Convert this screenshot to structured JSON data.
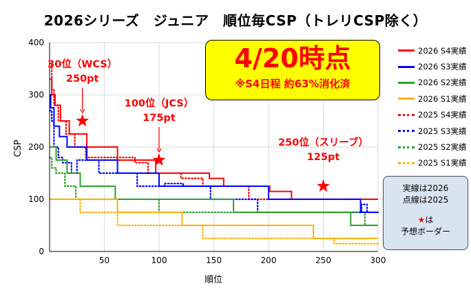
{
  "title": "2026シリーズ　ジュニア　順位毎CSP（トレリCSP除く）",
  "headline": {
    "main": "4/20時点",
    "sub": "※S4日程 約63%消化済"
  },
  "note": {
    "line1": "実線は2026",
    "line2": "点線は2025",
    "star_symbol": "★",
    "line3": "は",
    "line4": "予想ボーダー"
  },
  "colors": {
    "S4": "#ff0000",
    "S3": "#0000ff",
    "S2": "#2ca02c",
    "S1": "#ffb000",
    "axis": "#000000",
    "grid": "#d9d9d9"
  },
  "chart_data": {
    "type": "line",
    "title": "2026シリーズ　ジュニア　順位毎CSP（トレリCSP除く）",
    "xlabel": "順位",
    "ylabel": "CSP",
    "xlim": [
      0,
      300
    ],
    "ylim": [
      0,
      400
    ],
    "xticks": [
      50,
      100,
      150,
      200,
      250,
      300
    ],
    "yticks": [
      0,
      100,
      200,
      300,
      400
    ],
    "grid": true,
    "legend_position": "right",
    "series": [
      {
        "name": "2026 S4実績",
        "year": 2026,
        "key": "S4",
        "style": "solid",
        "points": [
          [
            0,
            330
          ],
          [
            2,
            330
          ],
          [
            2,
            300
          ],
          [
            5,
            300
          ],
          [
            5,
            280
          ],
          [
            10,
            280
          ],
          [
            10,
            250
          ],
          [
            18,
            250
          ],
          [
            18,
            225
          ],
          [
            34,
            225
          ],
          [
            34,
            200
          ],
          [
            62,
            200
          ],
          [
            62,
            175
          ],
          [
            97,
            175
          ],
          [
            97,
            150
          ],
          [
            146,
            150
          ],
          [
            146,
            140
          ],
          [
            159,
            140
          ],
          [
            159,
            125
          ],
          [
            201,
            125
          ],
          [
            201,
            115
          ],
          [
            221,
            115
          ],
          [
            221,
            100
          ],
          [
            300,
            100
          ]
        ]
      },
      {
        "name": "2026 S3実績",
        "year": 2026,
        "key": "S3",
        "style": "solid",
        "points": [
          [
            0,
            300
          ],
          [
            1,
            300
          ],
          [
            1,
            275
          ],
          [
            4,
            275
          ],
          [
            4,
            240
          ],
          [
            9,
            240
          ],
          [
            9,
            220
          ],
          [
            16,
            220
          ],
          [
            16,
            200
          ],
          [
            34,
            200
          ],
          [
            34,
            175
          ],
          [
            62,
            175
          ],
          [
            62,
            150
          ],
          [
            100,
            150
          ],
          [
            100,
            125
          ],
          [
            200,
            125
          ],
          [
            200,
            100
          ],
          [
            284,
            100
          ],
          [
            284,
            75
          ],
          [
            300,
            75
          ]
        ]
      },
      {
        "name": "2026 S2実績",
        "year": 2026,
        "key": "S2",
        "style": "solid",
        "points": [
          [
            0,
            200
          ],
          [
            6,
            200
          ],
          [
            6,
            175
          ],
          [
            16,
            175
          ],
          [
            16,
            150
          ],
          [
            28,
            150
          ],
          [
            28,
            125
          ],
          [
            60,
            125
          ],
          [
            60,
            100
          ],
          [
            168,
            100
          ],
          [
            168,
            75
          ],
          [
            275,
            75
          ],
          [
            275,
            50
          ],
          [
            300,
            50
          ]
        ]
      },
      {
        "name": "2026 S1実績",
        "year": 2026,
        "key": "S1",
        "style": "solid",
        "points": [
          [
            0,
            100
          ],
          [
            62,
            100
          ],
          [
            62,
            75
          ],
          [
            121,
            75
          ],
          [
            121,
            50
          ],
          [
            241,
            50
          ],
          [
            241,
            25
          ],
          [
            300,
            25
          ]
        ]
      },
      {
        "name": "2025 S4実績",
        "year": 2025,
        "key": "S4",
        "style": "dotted",
        "points": [
          [
            0,
            360
          ],
          [
            2,
            360
          ],
          [
            2,
            310
          ],
          [
            4,
            310
          ],
          [
            4,
            280
          ],
          [
            8,
            280
          ],
          [
            8,
            250
          ],
          [
            15,
            250
          ],
          [
            15,
            225
          ],
          [
            23,
            225
          ],
          [
            23,
            200
          ],
          [
            33,
            200
          ],
          [
            33,
            180
          ],
          [
            78,
            180
          ],
          [
            78,
            170
          ],
          [
            90,
            170
          ],
          [
            90,
            150
          ],
          [
            120,
            150
          ],
          [
            120,
            140
          ],
          [
            140,
            140
          ],
          [
            140,
            125
          ],
          [
            182,
            125
          ],
          [
            182,
            100
          ],
          [
            300,
            100
          ]
        ]
      },
      {
        "name": "2025 S3実績",
        "year": 2025,
        "key": "S3",
        "style": "dotted",
        "points": [
          [
            0,
            270
          ],
          [
            2,
            270
          ],
          [
            2,
            250
          ],
          [
            4,
            250
          ],
          [
            4,
            200
          ],
          [
            8,
            200
          ],
          [
            8,
            180
          ],
          [
            12,
            180
          ],
          [
            12,
            170
          ],
          [
            20,
            170
          ],
          [
            20,
            150
          ],
          [
            25,
            150
          ],
          [
            25,
            175
          ],
          [
            45,
            175
          ],
          [
            45,
            150
          ],
          [
            80,
            150
          ],
          [
            80,
            125
          ],
          [
            105,
            125
          ],
          [
            105,
            130
          ],
          [
            122,
            130
          ],
          [
            122,
            125
          ],
          [
            147,
            125
          ],
          [
            147,
            100
          ],
          [
            190,
            100
          ],
          [
            190,
            75
          ],
          [
            285,
            75
          ],
          [
            285,
            90
          ],
          [
            290,
            90
          ],
          [
            290,
            75
          ],
          [
            300,
            75
          ]
        ]
      },
      {
        "name": "2025 S2実績",
        "year": 2025,
        "key": "S2",
        "style": "dotted",
        "points": [
          [
            0,
            180
          ],
          [
            2,
            180
          ],
          [
            2,
            160
          ],
          [
            6,
            160
          ],
          [
            6,
            150
          ],
          [
            14,
            150
          ],
          [
            14,
            125
          ],
          [
            24,
            125
          ],
          [
            24,
            100
          ],
          [
            100,
            100
          ],
          [
            100,
            75
          ],
          [
            288,
            75
          ],
          [
            288,
            50
          ],
          [
            300,
            50
          ]
        ]
      },
      {
        "name": "2025 S1実績",
        "year": 2025,
        "key": "S1",
        "style": "dotted",
        "points": [
          [
            0,
            100
          ],
          [
            28,
            100
          ],
          [
            28,
            75
          ],
          [
            62,
            75
          ],
          [
            62,
            50
          ],
          [
            140,
            50
          ],
          [
            140,
            25
          ],
          [
            260,
            25
          ],
          [
            260,
            15
          ],
          [
            300,
            15
          ]
        ]
      }
    ],
    "borders": [
      {
        "x": 30,
        "y": 250,
        "label_line1": "30位（WCS）",
        "label_line2": "250pt",
        "arrow": true
      },
      {
        "x": 100,
        "y": 175,
        "label_line1": "100位（JCS）",
        "label_line2": "175pt",
        "arrow": true
      },
      {
        "x": 250,
        "y": 125,
        "label_line1": "250位（スリーブ）",
        "label_line2": "125pt",
        "arrow": false
      }
    ]
  }
}
